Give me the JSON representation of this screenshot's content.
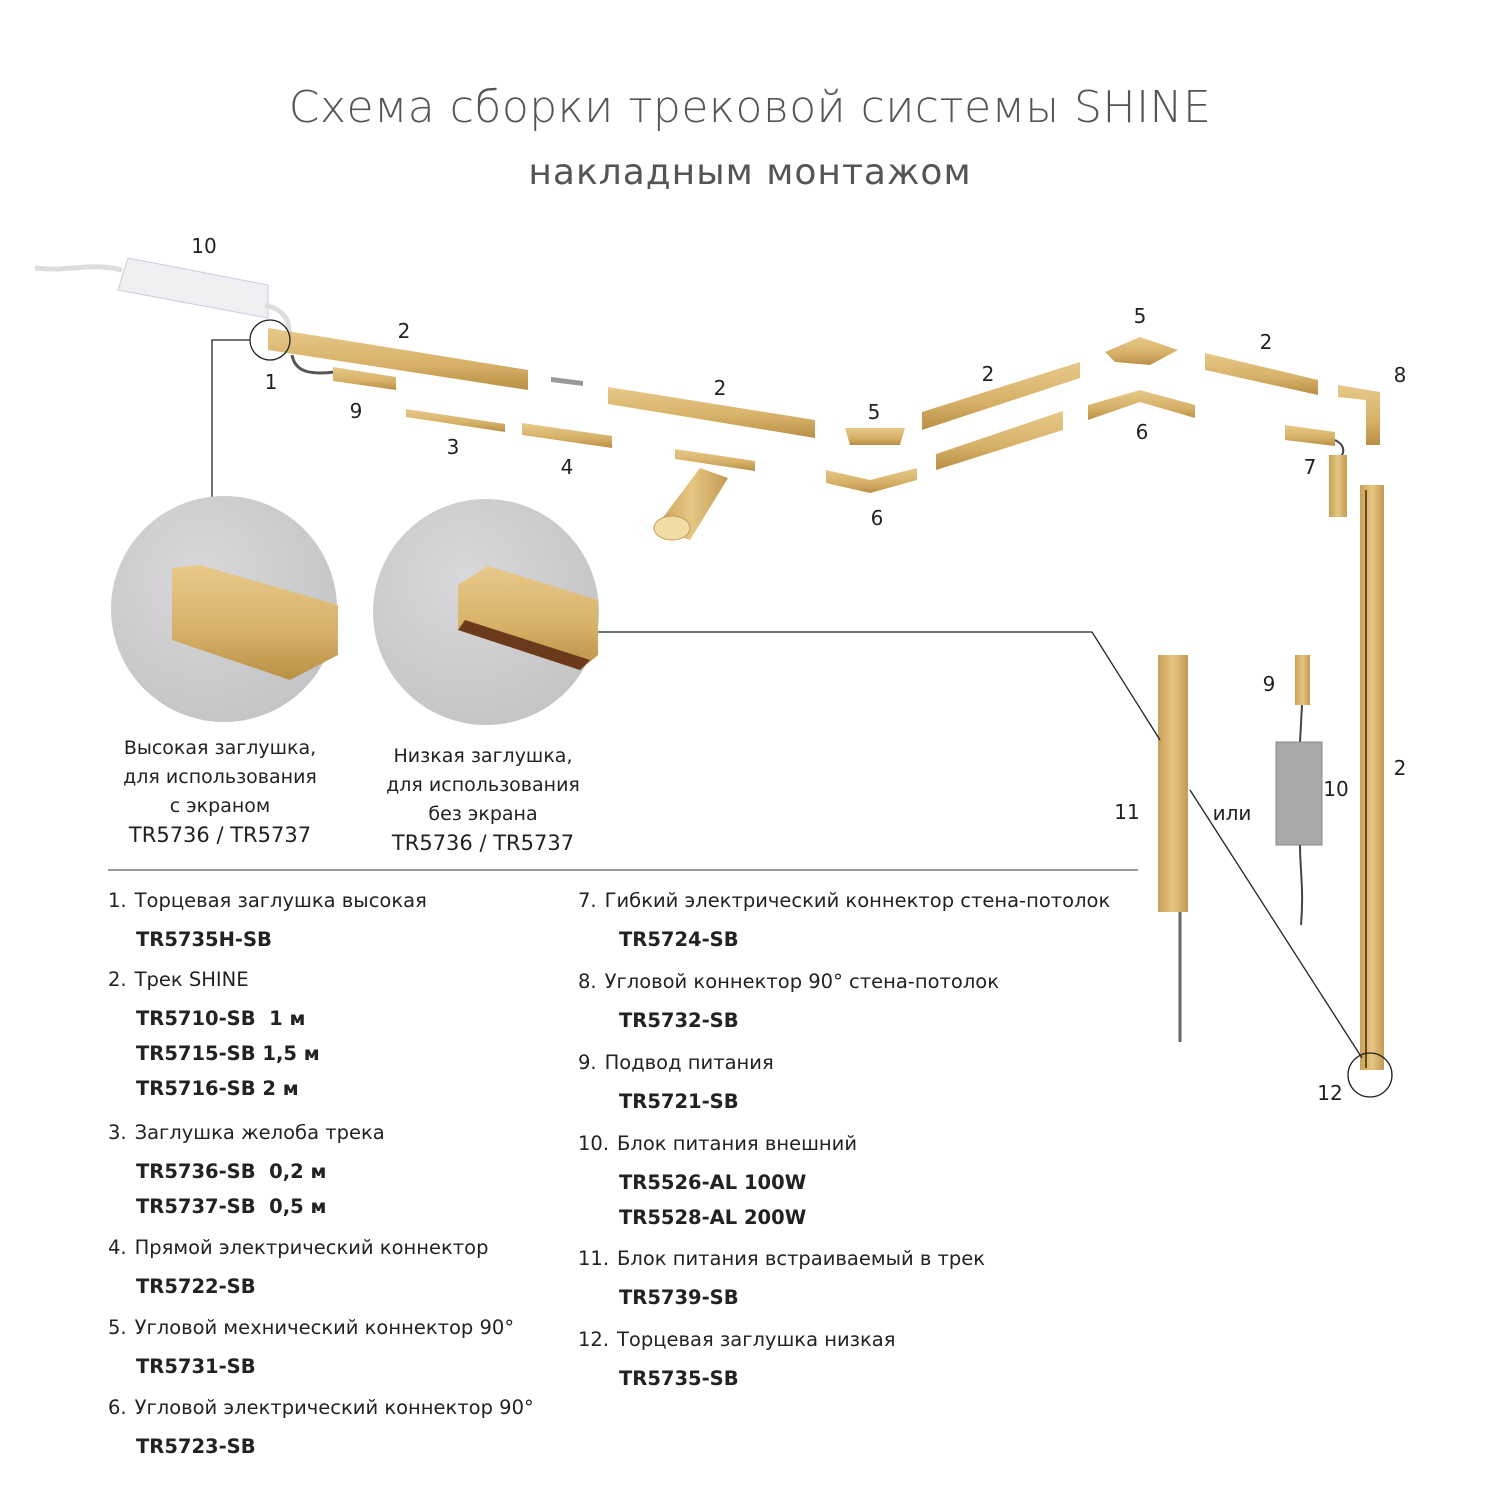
{
  "title": "Схема сборки трековой системы SHINE",
  "subtitle": "накладным монтажом",
  "colors": {
    "gold": "#d8b36c",
    "gold_dark": "#b88f45",
    "gray_circle": "#cdcdcf",
    "text": "#222222",
    "title": "#555555"
  },
  "callouts": [
    {
      "lines": [
        "Высокая заглушка,",
        "для использования",
        "с экраном",
        "TR5736 / TR5737"
      ]
    },
    {
      "lines": [
        "Низкая заглушка,",
        "для использования",
        "без экрана",
        "TR5736 / TR5737"
      ]
    }
  ],
  "labels": {
    "l10a": "10",
    "l2a": "2",
    "l1": "1",
    "l9a": "9",
    "l3": "3",
    "l4": "4",
    "l2b": "2",
    "l5a": "5",
    "l6a": "6",
    "l2c": "2",
    "l5b": "5",
    "l6b": "6",
    "l2d": "2",
    "l8": "8",
    "l7": "7",
    "l9b": "9",
    "l10b": "10",
    "l2e": "2",
    "l11": "11",
    "ili": "или",
    "l12": "12"
  },
  "items_left": [
    {
      "num": "1.",
      "name": "Торцевая заглушка высокая",
      "codes": [
        "TR5735H-SB"
      ]
    },
    {
      "num": "2.",
      "name": "Трек SHINE",
      "codes": [
        "TR5710-SB  1 м",
        "TR5715-SB 1,5 м",
        "TR5716-SB 2 м"
      ]
    },
    {
      "num": "3.",
      "name": "Заглушка желоба трека",
      "codes": [
        "TR5736-SB  0,2 м",
        "TR5737-SB  0,5 м"
      ]
    },
    {
      "num": "4.",
      "name": "Прямой электрический коннектор",
      "codes": [
        "TR5722-SB"
      ]
    },
    {
      "num": "5.",
      "name": "Угловой мехнический коннектор 90°",
      "codes": [
        "TR5731-SB"
      ]
    },
    {
      "num": "6.",
      "name": "Угловой электрический коннектор 90°",
      "codes": [
        "TR5723-SB"
      ]
    }
  ],
  "items_right": [
    {
      "num": "7.",
      "name": "Гибкий электрический коннектор стена-потолок",
      "codes": [
        "TR5724-SB"
      ]
    },
    {
      "num": "8.",
      "name": "Угловой коннектор 90° стена-потолок",
      "codes": [
        "TR5732-SB"
      ]
    },
    {
      "num": "9.",
      "name": "Подвод питания",
      "codes": [
        "TR5721-SB"
      ]
    },
    {
      "num": "10.",
      "name": "Блок питания внешний",
      "codes": [
        "TR5526-AL 100W",
        "TR5528-AL 200W"
      ]
    },
    {
      "num": "11.",
      "name": "Блок питания встраиваемый в трек",
      "codes": [
        "TR5739-SB"
      ]
    },
    {
      "num": "12.",
      "name": "Торцевая заглушка низкая",
      "codes": [
        "TR5735-SB"
      ]
    }
  ]
}
